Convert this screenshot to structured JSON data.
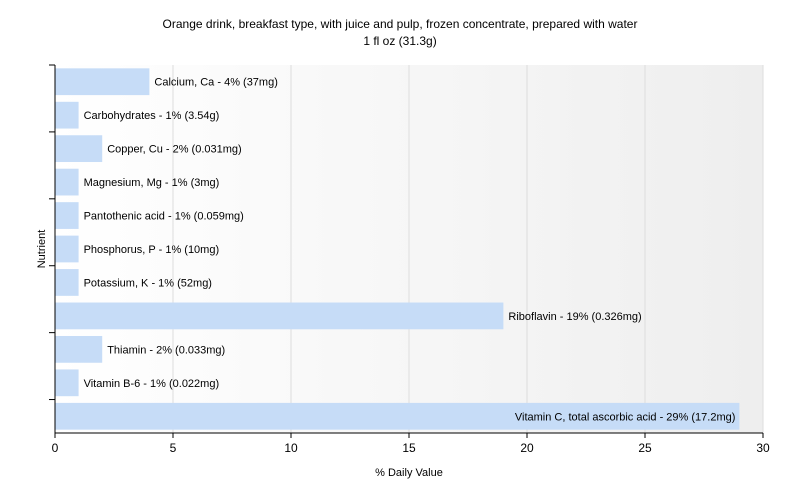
{
  "chart_data": {
    "type": "bar",
    "orientation": "horizontal",
    "title": "Orange drink, breakfast type, with juice and pulp, frozen concentrate, prepared with water",
    "subtitle": "1 fl oz (31.3g)",
    "xlabel": "% Daily Value",
    "ylabel": "Nutrient",
    "xlim": [
      0,
      30
    ],
    "x_ticks": [
      "0",
      "5",
      "10",
      "15",
      "20",
      "25",
      "30"
    ],
    "grid": "vertical",
    "bar_color": "#c6dcf7",
    "categories": [
      "Calcium, Ca",
      "Carbohydrates",
      "Copper, Cu",
      "Magnesium, Mg",
      "Pantothenic acid",
      "Phosphorus, P",
      "Potassium, K",
      "Riboflavin",
      "Thiamin",
      "Vitamin B-6",
      "Vitamin C, total ascorbic acid"
    ],
    "values": [
      4,
      1,
      2,
      1,
      1,
      1,
      1,
      19,
      2,
      1,
      29
    ],
    "labels": [
      "Calcium, Ca - 4% (37mg)",
      "Carbohydrates - 1% (3.54g)",
      "Copper, Cu - 2% (0.031mg)",
      "Magnesium, Mg - 1% (3mg)",
      "Pantothenic acid - 1% (0.059mg)",
      "Phosphorus, P - 1% (10mg)",
      "Potassium, K - 1% (52mg)",
      "Riboflavin - 19% (0.326mg)",
      "Thiamin - 2% (0.033mg)",
      "Vitamin B-6 - 1% (0.022mg)",
      "Vitamin C, total ascorbic acid - 29% (17.2mg)"
    ]
  }
}
